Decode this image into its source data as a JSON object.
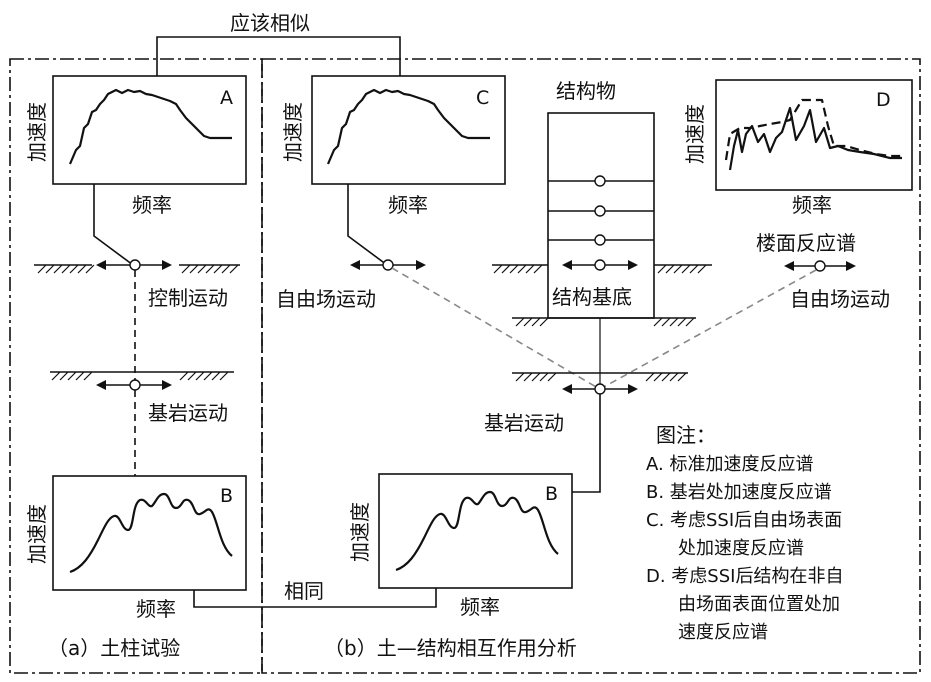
{
  "labels": {
    "similar": "应该相似",
    "same": "相同",
    "structure": "结构物",
    "floor_spectrum": "楼面反应谱",
    "control_motion": "控制运动",
    "bedrock_motion_a": "基岩运动",
    "bedrock_motion_b": "基岩运动",
    "free_field_left": "自由场运动",
    "free_field_right": "自由场运动",
    "structure_base": "结构基底",
    "panel_a_caption": "（a）土柱试验",
    "panel_b_caption": "（b）土—结构相互作用分析"
  },
  "plots": {
    "A": {
      "letter": "A",
      "ylabel": "加速度",
      "xlabel": "频率"
    },
    "C": {
      "letter": "C",
      "ylabel": "加速度",
      "xlabel": "频率"
    },
    "D": {
      "letter": "D",
      "ylabel": "加速度",
      "xlabel": "频率"
    },
    "B1": {
      "letter": "B",
      "ylabel": "加速度",
      "xlabel": "频率"
    },
    "B2": {
      "letter": "B",
      "ylabel": "加速度",
      "xlabel": "频率"
    }
  },
  "legend": {
    "title": "图注：",
    "lines": [
      "A. 标准加速度反应谱",
      "B. 基岩处加速度反应谱",
      "C. 考虑SSI后自由场表面",
      "处加速度反应谱",
      "D. 考虑SSI后结构在非自",
      "由场面表面位置处加",
      "速度反应谱"
    ]
  }
}
